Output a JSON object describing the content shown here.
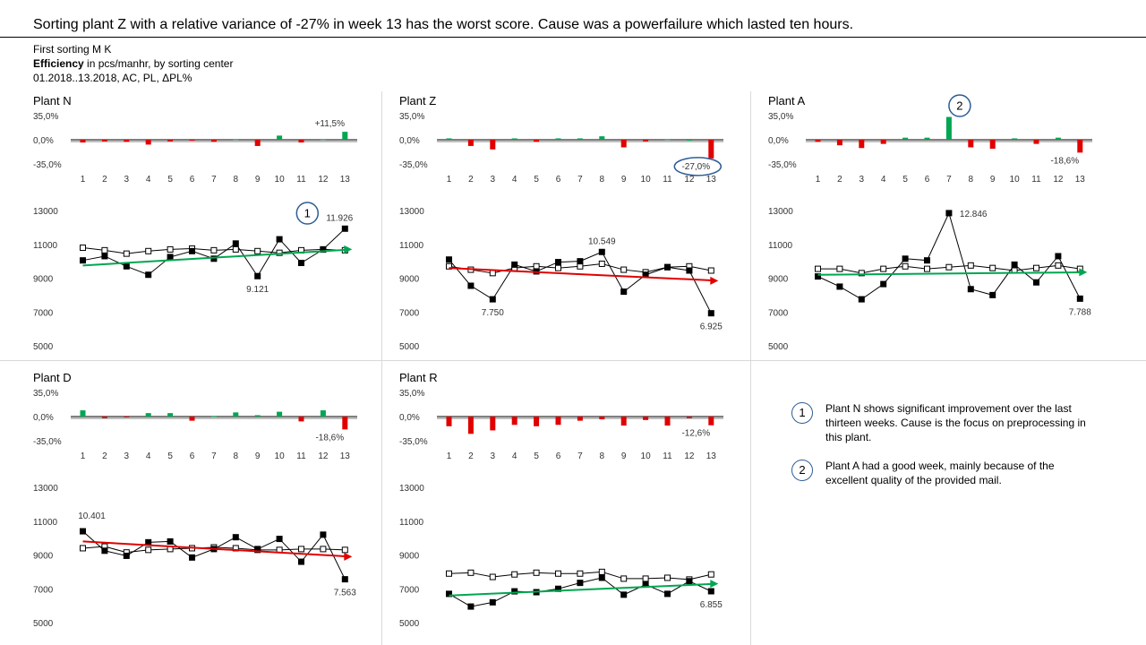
{
  "header": {
    "message": "Sorting plant Z with a relative variance of -27% in week 13 has the worst score. Cause was a powerfailure which lasted ten hours.",
    "line1": "First sorting M K",
    "measure_bold": "Efficiency",
    "measure_rest": " in pcs/manhr,  by sorting center",
    "line3": "01.2018..13.2018,  AC, PL, ΔPL%"
  },
  "colors": {
    "positive": "#00a651",
    "negative": "#e00000",
    "trend_up": "#00a651",
    "trend_down": "#e00000",
    "callout": "#2e5d96"
  },
  "notes": [
    {
      "num": "1",
      "text": "Plant N shows significant improvement  over the last thirteen weeks. Cause is the focus on preprocessing in this plant."
    },
    {
      "num": "2",
      "text": "Plant A had a good week, mainly because of the excellent quality of the provided  mail."
    }
  ],
  "chart_data": [
    {
      "type": "bar+line",
      "title": "Plant N",
      "categories": [
        "1",
        "2",
        "3",
        "4",
        "5",
        "6",
        "7",
        "8",
        "9",
        "10",
        "11",
        "12",
        "13"
      ],
      "variance_axis_labels": [
        "35,0%",
        "0,0%",
        "-35,0%"
      ],
      "variance_range": [
        -35,
        35
      ],
      "variance_pct": [
        -4,
        -2,
        -3,
        -7,
        -2,
        -1,
        -3,
        1,
        -9,
        6,
        -4,
        1,
        11.5
      ],
      "variance_label": "+11,5%",
      "line_axis_labels": [
        "13000",
        "11000",
        "9000",
        "7000",
        "5000"
      ],
      "line_range": [
        5000,
        13000
      ],
      "series": [
        {
          "name": "AC",
          "values": [
            10050,
            10300,
            9700,
            9200,
            10250,
            10600,
            10150,
            11050,
            9121,
            11300,
            9900,
            10700,
            11926
          ]
        },
        {
          "name": "PL",
          "values": [
            10800,
            10650,
            10450,
            10600,
            10700,
            10750,
            10650,
            10700,
            10600,
            10500,
            10650,
            10700,
            10650
          ]
        }
      ],
      "trend": {
        "from": 9750,
        "to": 10700,
        "direction": "up"
      },
      "line_labels": [
        {
          "index": 8,
          "text": "9.121"
        },
        {
          "index": 12,
          "text": "11.926"
        }
      ],
      "callout": {
        "num": "1",
        "index": 12
      }
    },
    {
      "type": "bar+line",
      "title": "Plant Z",
      "categories": [
        "1",
        "2",
        "3",
        "4",
        "5",
        "6",
        "7",
        "8",
        "9",
        "10",
        "11",
        "12",
        "13"
      ],
      "variance_axis_labels": [
        "35,0%",
        "0,0%",
        "-35,0%"
      ],
      "variance_range": [
        -35,
        35
      ],
      "variance_pct": [
        2,
        -9,
        -14,
        2,
        -3,
        2,
        2,
        5,
        -11,
        -2,
        1,
        0,
        -27
      ],
      "variance_label": "-27,0%",
      "line_axis_labels": [
        "13000",
        "11000",
        "9000",
        "7000",
        "5000"
      ],
      "line_range": [
        5000,
        13000
      ],
      "series": [
        {
          "name": "AC",
          "values": [
            10100,
            8550,
            7750,
            9800,
            9400,
            9950,
            10000,
            10549,
            8200,
            9200,
            9650,
            9450,
            6925
          ]
        },
        {
          "name": "PL",
          "values": [
            9700,
            9500,
            9300,
            9600,
            9700,
            9600,
            9700,
            9850,
            9500,
            9350,
            9650,
            9700,
            9450
          ]
        }
      ],
      "trend": {
        "from": 9600,
        "to": 8850,
        "direction": "down"
      },
      "line_labels": [
        {
          "index": 2,
          "text": "7.750"
        },
        {
          "index": 7,
          "text": "10.549"
        },
        {
          "index": 12,
          "text": "6.925"
        }
      ],
      "variance_callout_ellipse": true
    },
    {
      "type": "bar+line",
      "title": "Plant A",
      "categories": [
        "1",
        "2",
        "3",
        "4",
        "5",
        "6",
        "7",
        "8",
        "9",
        "10",
        "11",
        "12",
        "13"
      ],
      "variance_axis_labels": [
        "35,0%",
        "0,0%",
        "-35,0%"
      ],
      "variance_range": [
        -35,
        35
      ],
      "variance_pct": [
        -3,
        -8,
        -12,
        -6,
        3,
        3,
        33,
        -11,
        -13,
        2,
        -6,
        3,
        -18.6
      ],
      "variance_label": "-18,6%",
      "line_axis_labels": [
        "13000",
        "11000",
        "9000",
        "7000",
        "5000"
      ],
      "line_range": [
        5000,
        13000
      ],
      "series": [
        {
          "name": "AC",
          "values": [
            9100,
            8500,
            7750,
            8650,
            10150,
            10050,
            12846,
            8350,
            8000,
            9800,
            8750,
            10300,
            7788
          ]
        },
        {
          "name": "PL",
          "values": [
            9550,
            9550,
            9300,
            9550,
            9700,
            9550,
            9650,
            9750,
            9600,
            9450,
            9600,
            9750,
            9550
          ]
        }
      ],
      "trend": {
        "from": 9200,
        "to": 9350,
        "direction": "up"
      },
      "line_labels": [
        {
          "index": 6,
          "text": "12.846"
        },
        {
          "index": 12,
          "text": "7.788"
        }
      ],
      "callout": {
        "num": "2",
        "index": 6
      }
    },
    {
      "type": "bar+line",
      "title": "Plant D",
      "categories": [
        "1",
        "2",
        "3",
        "4",
        "5",
        "6",
        "7",
        "8",
        "9",
        "10",
        "11",
        "12",
        "13"
      ],
      "variance_axis_labels": [
        "35,0%",
        "0,0%",
        "-35,0%"
      ],
      "variance_range": [
        -35,
        35
      ],
      "variance_pct": [
        9,
        -2,
        -1,
        5,
        5,
        -6,
        1,
        6,
        2,
        7,
        -7,
        9,
        -18.6
      ],
      "variance_label": "-18,6%",
      "line_axis_labels": [
        "13000",
        "11000",
        "9000",
        "7000",
        "5000"
      ],
      "line_range": [
        5000,
        13000
      ],
      "series": [
        {
          "name": "AC",
          "values": [
            10401,
            9250,
            8950,
            9750,
            9800,
            8850,
            9350,
            10050,
            9350,
            9950,
            8600,
            10200,
            7563
          ]
        },
        {
          "name": "PL",
          "values": [
            9400,
            9500,
            9150,
            9300,
            9350,
            9400,
            9450,
            9400,
            9300,
            9300,
            9350,
            9350,
            9300
          ]
        }
      ],
      "trend": {
        "from": 9800,
        "to": 8900,
        "direction": "down"
      },
      "line_labels": [
        {
          "index": 0,
          "text": "10.401"
        },
        {
          "index": 12,
          "text": "7.563"
        }
      ]
    },
    {
      "type": "bar+line",
      "title": "Plant R",
      "categories": [
        "1",
        "2",
        "3",
        "4",
        "5",
        "6",
        "7",
        "8",
        "9",
        "10",
        "11",
        "12",
        "13"
      ],
      "variance_axis_labels": [
        "35,0%",
        "0,0%",
        "-35,0%"
      ],
      "variance_range": [
        -35,
        35
      ],
      "variance_pct": [
        -14,
        -25,
        -20,
        -12,
        -14,
        -12,
        -6,
        -4,
        -13,
        -5,
        -13,
        -2,
        -12.6
      ],
      "variance_label": "-12,6%",
      "line_axis_labels": [
        "13000",
        "11000",
        "9000",
        "7000",
        "5000"
      ],
      "line_range": [
        5000,
        13000
      ],
      "series": [
        {
          "name": "AC",
          "values": [
            6700,
            5950,
            6200,
            6850,
            6800,
            7000,
            7350,
            7650,
            6650,
            7250,
            6700,
            7450,
            6855
          ]
        },
        {
          "name": "PL",
          "values": [
            7900,
            7950,
            7700,
            7850,
            7950,
            7900,
            7900,
            8000,
            7600,
            7600,
            7650,
            7550,
            7850
          ]
        }
      ],
      "trend": {
        "from": 6600,
        "to": 7300,
        "direction": "up"
      },
      "line_labels": [
        {
          "index": 12,
          "text": "6.855"
        }
      ]
    }
  ]
}
